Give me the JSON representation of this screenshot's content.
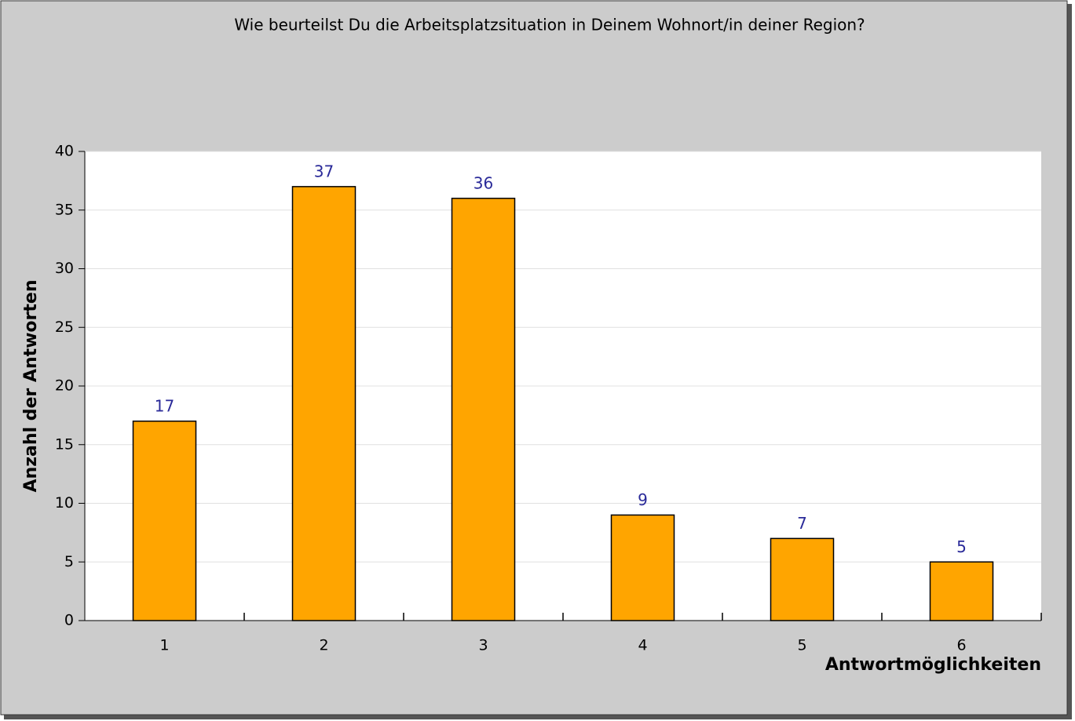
{
  "chart_data": {
    "type": "bar",
    "title": "Wie beurteilst Du die Arbeitsplatzsituation in Deinem Wohnort/in deiner Region?",
    "x_label": "Antwortmöglichkeiten",
    "y_label": "Anzahl der Antworten",
    "categories": [
      "1",
      "2",
      "3",
      "4",
      "5",
      "6"
    ],
    "values": [
      17,
      37,
      36,
      9,
      7,
      5
    ],
    "color": "#ffa500",
    "ylim": [
      0,
      40
    ],
    "yticks": [
      0,
      5,
      10,
      15,
      20,
      25,
      30,
      35,
      40
    ],
    "grid": true
  }
}
